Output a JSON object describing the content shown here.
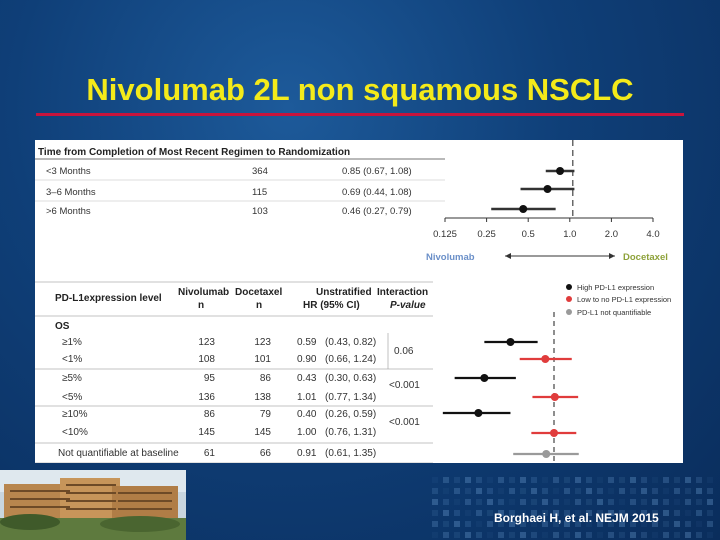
{
  "slide": {
    "title": "Nivolumab 2L non squamous NSCLC",
    "citation": "Borghaei H, et al. NEJM 2015"
  },
  "colors": {
    "title": "#f4ea1a",
    "rule": "#c8143c",
    "high": "#111111",
    "low": "#e03c3c",
    "nq": "#9a9a9a"
  },
  "top": {
    "header": "Time from Completion of Most Recent Regimen to Randomization",
    "rows": [
      {
        "label": "<3 Months",
        "n": "364",
        "hr_text": "0.85 (0.67, 1.08)",
        "hr": 0.85,
        "lo": 0.67,
        "hi": 1.08
      },
      {
        "label": "3–6 Months",
        "n": "115",
        "hr_text": "0.69 (0.44, 1.08)",
        "hr": 0.69,
        "lo": 0.44,
        "hi": 1.08
      },
      {
        "label": ">6 Months",
        "n": "103",
        "hr_text": "0.46 (0.27, 0.79)",
        "hr": 0.46,
        "lo": 0.27,
        "hi": 0.79
      }
    ],
    "ticks": [
      "0.125",
      "0.25",
      "0.5",
      "1.0",
      "2.0",
      "4.0"
    ],
    "favors_left": "Nivolumab",
    "favors_right": "Docetaxel"
  },
  "table": {
    "headers": {
      "col1": "PD-L1expression level",
      "col2a": "Nivolumab",
      "col2b": "n",
      "col3a": "Docetaxel",
      "col3b": "n",
      "col4a": "Unstratified",
      "col4b": "HR (95% CI)",
      "col5a": "Interaction",
      "col5b": "P-value"
    },
    "section": "OS",
    "rows": [
      {
        "label": "≥1%",
        "niv": "123",
        "doc": "123",
        "hr_text": "0.59",
        "ci_text": "(0.43, 0.82)"
      },
      {
        "label": "<1%",
        "niv": "108",
        "doc": "101",
        "hr_text": "0.90",
        "ci_text": "(0.66, 1.24)"
      },
      {
        "label": "≥5%",
        "niv": "95",
        "doc": "86",
        "hr_text": "0.43",
        "ci_text": "(0.30, 0.63)"
      },
      {
        "label": "<5%",
        "niv": "136",
        "doc": "138",
        "hr_text": "1.01",
        "ci_text": "(0.77, 1.34)"
      },
      {
        "label": "≥10%",
        "niv": "86",
        "doc": "79",
        "hr_text": "0.40",
        "ci_text": "(0.26, 0.59)"
      },
      {
        "label": "<10%",
        "niv": "145",
        "doc": "145",
        "hr_text": "1.00",
        "ci_text": "(0.76, 1.31)"
      },
      {
        "label": "Not quantifiable at baseline",
        "niv": "61",
        "doc": "66",
        "hr_text": "0.91",
        "ci_text": "(0.61, 1.35)"
      }
    ],
    "pvalues": [
      "0.06",
      "<0.001",
      "<0.001"
    ]
  },
  "legend": {
    "high": "High PD-L1 expression",
    "low": "Low to no PD-L1 expression",
    "nq": "PD-L1 not quantifiable"
  },
  "chart_data": [
    {
      "type": "scatter",
      "title": "Time from Completion of Most Recent Regimen to Randomization",
      "x_scale": "log2",
      "xlim": [
        0.125,
        4.0
      ],
      "series": [
        {
          "categories": [
            "<3 Months",
            "3–6 Months",
            ">6 Months"
          ],
          "values": [
            0.85,
            0.69,
            0.46
          ],
          "ci_low": [
            0.67,
            0.44,
            0.27
          ],
          "ci_high": [
            1.08,
            1.08,
            0.79
          ]
        }
      ],
      "reference_line": 1.0
    },
    {
      "type": "scatter",
      "title": "",
      "x_scale": "log",
      "categories": [
        "≥1%",
        "<1%",
        "≥5%",
        "<5%",
        "≥10%",
        "<10%",
        "Not quantifiable at baseline"
      ],
      "series": [
        {
          "name": "High PD-L1 expression",
          "points": [
            {
              "category": "≥1%",
              "hr": 0.59,
              "lo": 0.43,
              "hi": 0.82
            },
            {
              "category": "≥5%",
              "hr": 0.43,
              "lo": 0.3,
              "hi": 0.63
            },
            {
              "category": "≥10%",
              "hr": 0.4,
              "lo": 0.26,
              "hi": 0.59
            }
          ]
        },
        {
          "name": "Low to no PD-L1 expression",
          "points": [
            {
              "category": "<1%",
              "hr": 0.9,
              "lo": 0.66,
              "hi": 1.24
            },
            {
              "category": "<5%",
              "hr": 1.01,
              "lo": 0.77,
              "hi": 1.34
            },
            {
              "category": "<10%",
              "hr": 1.0,
              "lo": 0.76,
              "hi": 1.31
            }
          ]
        },
        {
          "name": "PD-L1 not quantifiable",
          "points": [
            {
              "category": "Not quantifiable at baseline",
              "hr": 0.91,
              "lo": 0.61,
              "hi": 1.35
            }
          ]
        }
      ],
      "reference_line": 1.0
    }
  ]
}
